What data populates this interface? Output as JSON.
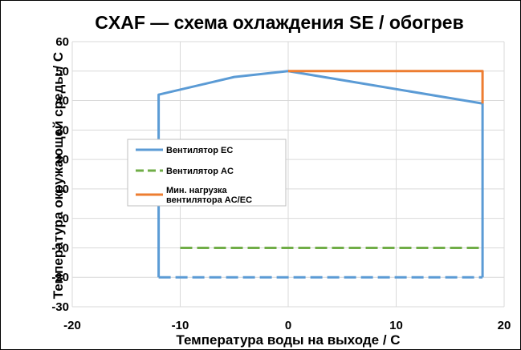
{
  "chart_data": {
    "type": "line",
    "title": "CXAF — схема охлаждения SE / обогрев",
    "xlabel": "Температура воды на выходе / C",
    "ylabel": "Температура окружающей среды / C",
    "xlim": [
      -20,
      20
    ],
    "ylim": [
      -30,
      60
    ],
    "x_ticks": [
      -20,
      -10,
      0,
      10,
      20
    ],
    "y_ticks": [
      -30,
      -20,
      -10,
      0,
      10,
      20,
      30,
      40,
      50,
      60
    ],
    "grid": true,
    "legend_position": "left",
    "series": [
      {
        "name": "Вентилятор EC",
        "color": "#5b9bd5",
        "dash": "solid",
        "points": [
          [
            -12,
            -20
          ],
          [
            -12,
            42
          ],
          [
            -5,
            48
          ],
          [
            0,
            50
          ],
          [
            18,
            39
          ],
          [
            18,
            -20
          ]
        ]
      },
      {
        "name": "",
        "color": "#5b9bd5",
        "dash": "dashed",
        "points": [
          [
            -12,
            -20
          ],
          [
            18,
            -20
          ]
        ]
      },
      {
        "name": "Вентилятор AC",
        "color": "#70ad47",
        "dash": "dashed",
        "points": [
          [
            -10,
            -10
          ],
          [
            18,
            -10
          ]
        ]
      },
      {
        "name": "Мин. нагрузка вентилятора AC/EC",
        "color": "#ed7d31",
        "dash": "solid",
        "points": [
          [
            0,
            50
          ],
          [
            18,
            50
          ],
          [
            18,
            39
          ]
        ]
      }
    ],
    "legend": [
      {
        "lines": [
          "Вентилятор EC"
        ],
        "color": "#5b9bd5",
        "dash": "solid"
      },
      {
        "lines": [
          "Вентилятор AC"
        ],
        "color": "#70ad47",
        "dash": "dashed"
      },
      {
        "lines": [
          "Мин. нагрузка",
          "вентилятора AC/EC"
        ],
        "color": "#ed7d31",
        "dash": "solid"
      }
    ]
  }
}
